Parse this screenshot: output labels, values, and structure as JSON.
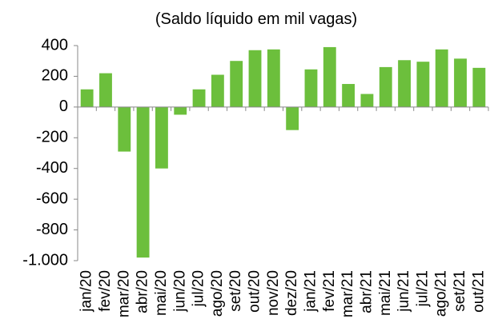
{
  "chart_data": {
    "type": "bar",
    "title": "(Saldo líquido em mil vagas)",
    "categories": [
      "jan/20",
      "fev/20",
      "mar/20",
      "abr/20",
      "mai/20",
      "jun/20",
      "jul/20",
      "ago/20",
      "set/20",
      "out/20",
      "nov/20",
      "dez/20",
      "jan/21",
      "fev/21",
      "mar/21",
      "abr/21",
      "mai/21",
      "jun/21",
      "jul/21",
      "ago/21",
      "set/21",
      "out/21"
    ],
    "values": [
      115,
      220,
      -290,
      -980,
      -400,
      -50,
      115,
      210,
      300,
      370,
      375,
      -150,
      245,
      390,
      150,
      85,
      260,
      305,
      295,
      375,
      315,
      255
    ],
    "color": "#6cbf3c",
    "ylim": [
      -1000,
      400
    ],
    "yticks": [
      400,
      200,
      0,
      -200,
      -400,
      -600,
      -800,
      {
        "value": -1000,
        "label": "-1.000"
      }
    ],
    "grid": false
  }
}
